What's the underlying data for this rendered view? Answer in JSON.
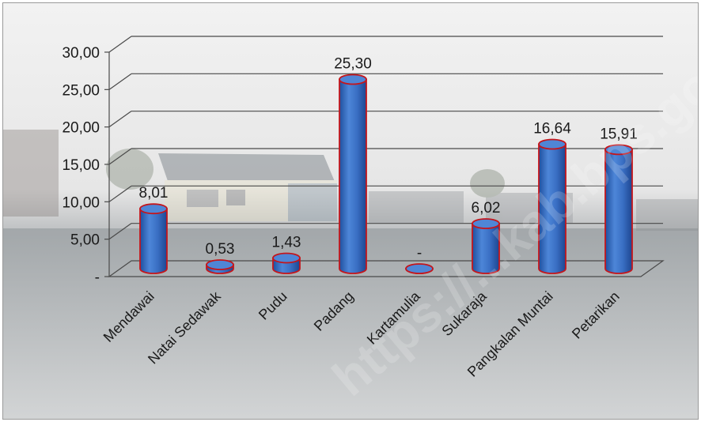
{
  "chart_data": {
    "type": "bar",
    "style": "3d-cylinder",
    "categories": [
      "Mendawai",
      "Natai Sedawak",
      "Pudu",
      "Padang",
      "Kartamulia",
      "Sukaraja",
      "Pangkalan Muntai",
      "Petarikan"
    ],
    "values": [
      8.01,
      0.53,
      1.43,
      25.3,
      0,
      6.02,
      16.64,
      15.91
    ],
    "data_labels": [
      "8,01",
      "0,53",
      "1,43",
      "25,30",
      "-",
      "6,02",
      "16,64",
      "15,91"
    ],
    "yticks": [
      "-",
      "5,00",
      "10,00",
      "15,00",
      "20,00",
      "25,00",
      "30,00"
    ],
    "ylim": [
      0,
      30
    ],
    "grid": true,
    "legend": "none",
    "colors": {
      "bar_fill": "#3a6fc4",
      "bar_outline": "#c4161c",
      "gridline": "#4a4a4a",
      "text": "#1a1a1a"
    }
  },
  "watermark": "https://...kab.bps.go.id"
}
